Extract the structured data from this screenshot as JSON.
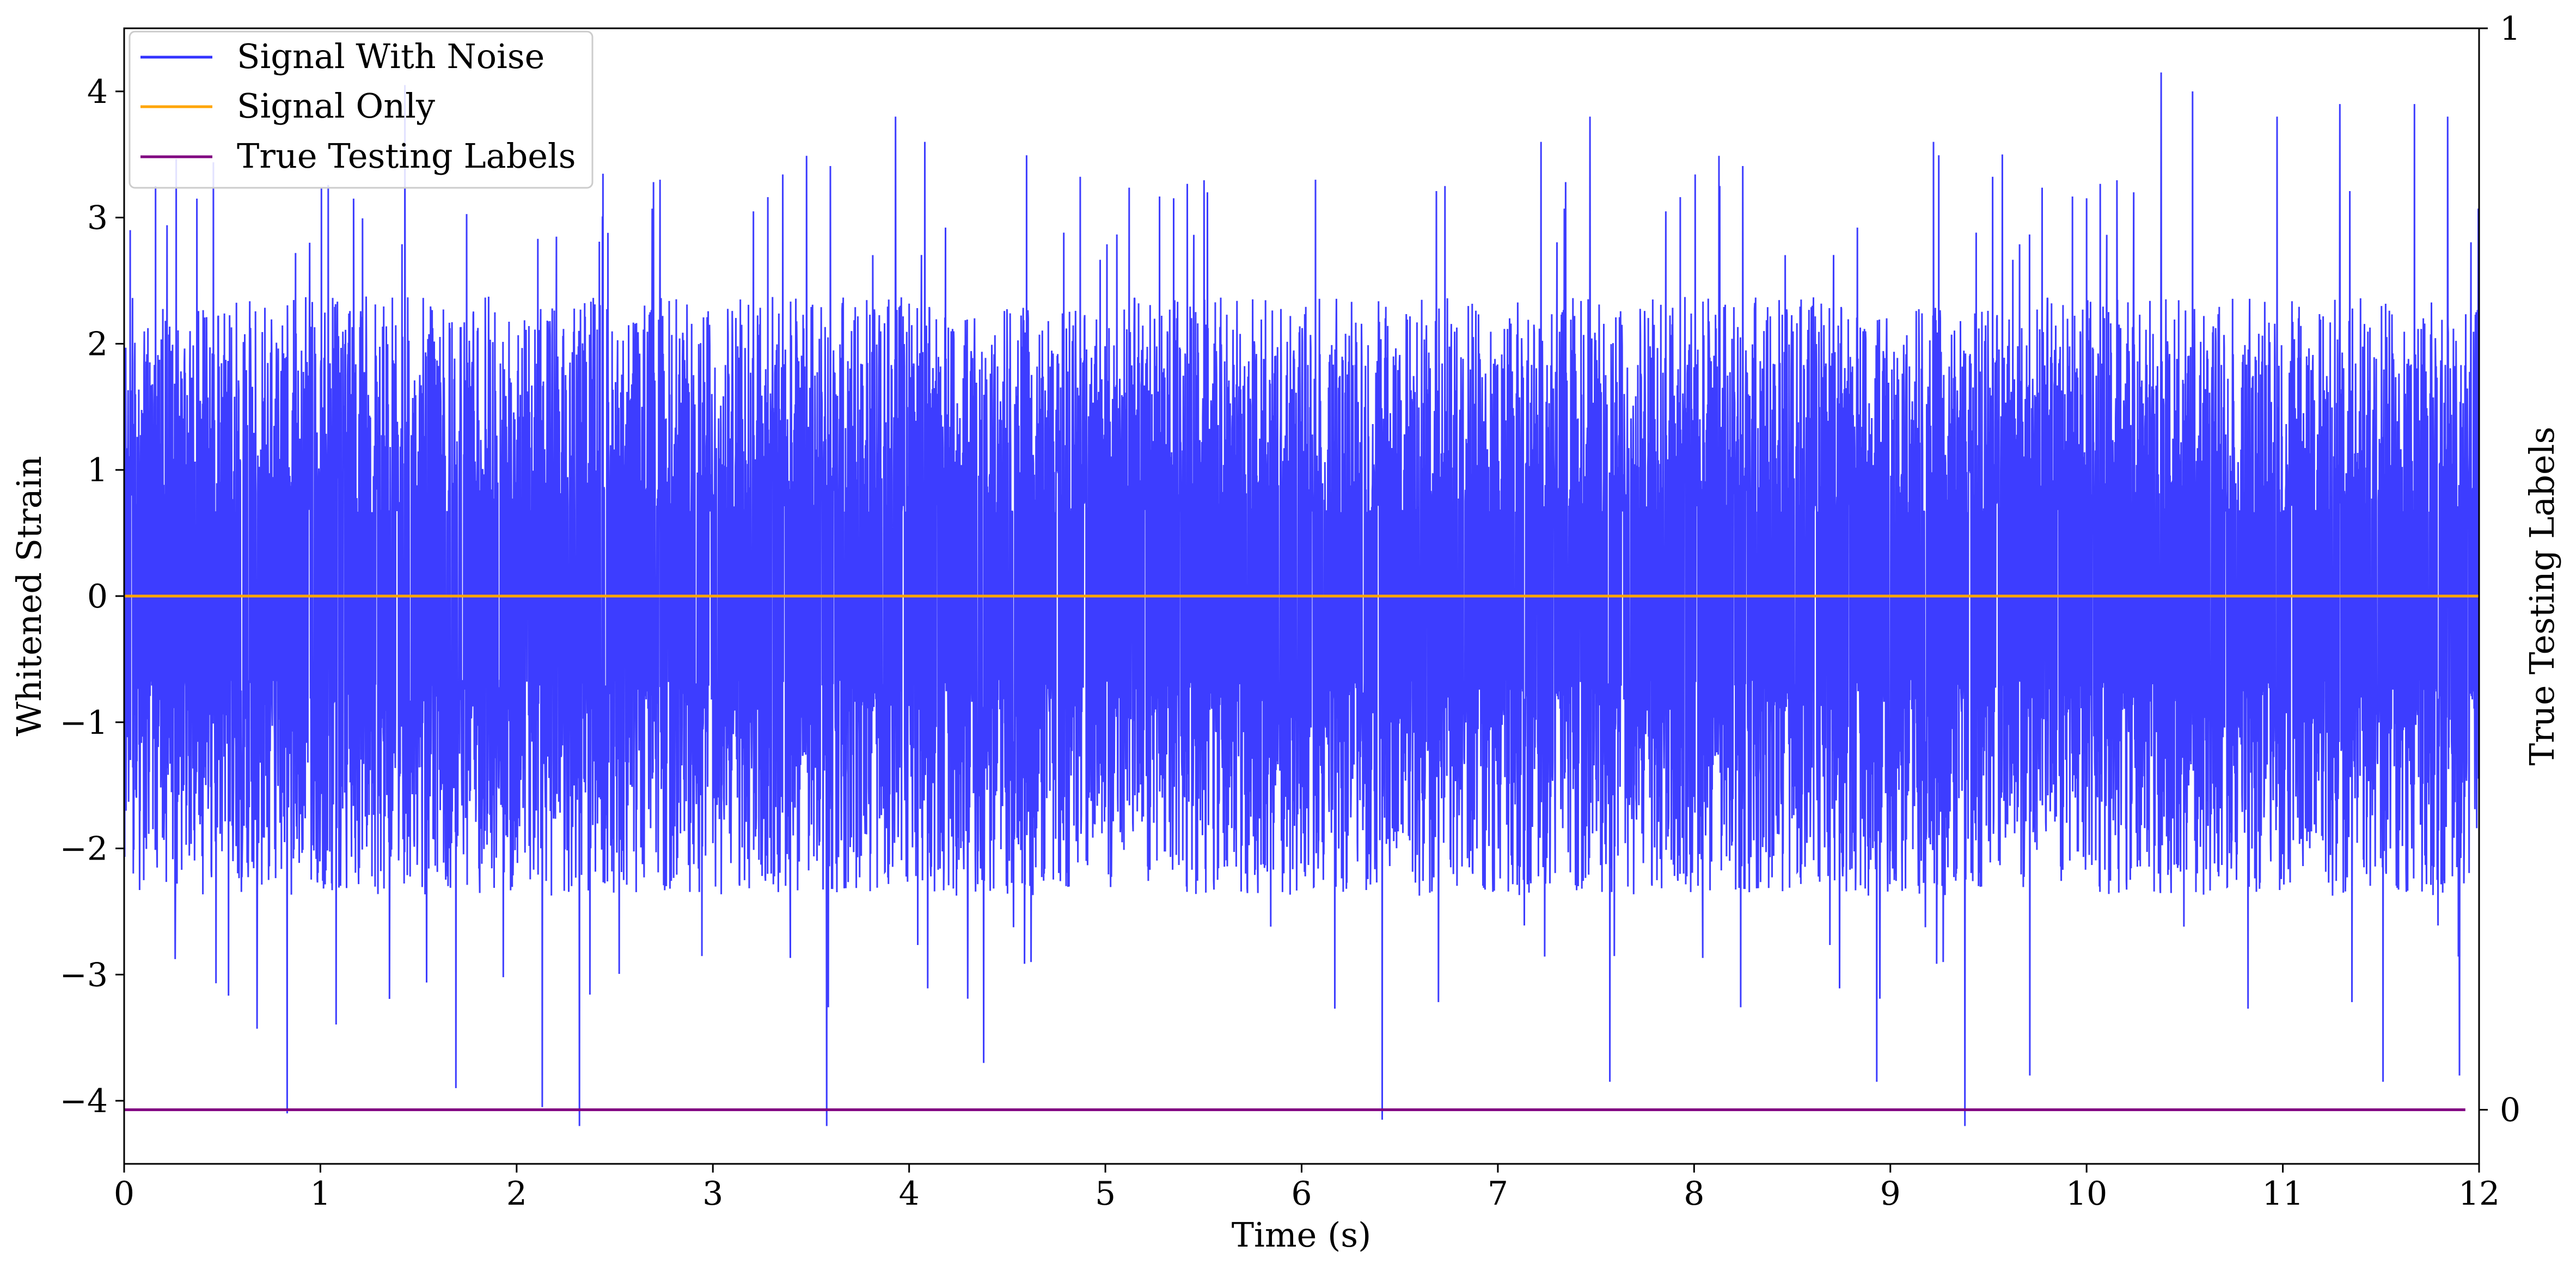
{
  "chart_data": {
    "type": "line",
    "xlabel": "Time (s)",
    "ylabel": "Whitened Strain",
    "y2label": "True Testing Labels",
    "xlim": [
      0,
      12
    ],
    "ylim": [
      -4.5,
      4.5
    ],
    "y2lim": [
      -0.05,
      1
    ],
    "xticks": [
      "0",
      "1",
      "2",
      "3",
      "4",
      "5",
      "6",
      "7",
      "8",
      "9",
      "10",
      "11",
      "12"
    ],
    "yticks": [
      "−4",
      "−3",
      "−2",
      "−1",
      "0",
      "1",
      "2",
      "3",
      "4"
    ],
    "y2ticks": [
      "0",
      "1"
    ],
    "grid": false,
    "legend_position": "top-left",
    "noise_envelope": {
      "typical_amplitude": 1.9,
      "max": 4.15,
      "min": -4.2
    },
    "series": [
      {
        "name": "Signal With Noise",
        "color": "#3333ff",
        "peaks": [
          {
            "x": 0.03,
            "y": 2.9
          },
          {
            "x": 0.16,
            "y": 3.25
          },
          {
            "x": 0.37,
            "y": 3.15
          },
          {
            "x": 0.83,
            "y": -4.1
          },
          {
            "x": 1.17,
            "y": 3.15
          },
          {
            "x": 1.43,
            "y": 4.05
          },
          {
            "x": 1.69,
            "y": -3.9
          },
          {
            "x": 2.13,
            "y": -4.05
          },
          {
            "x": 2.32,
            "y": -4.2
          },
          {
            "x": 2.73,
            "y": 3.3
          },
          {
            "x": 3.58,
            "y": -4.2
          },
          {
            "x": 3.93,
            "y": 3.8
          },
          {
            "x": 4.08,
            "y": 3.6
          },
          {
            "x": 4.38,
            "y": -3.7
          },
          {
            "x": 5.52,
            "y": 3.2
          },
          {
            "x": 6.07,
            "y": 3.3
          },
          {
            "x": 6.41,
            "y": -4.15
          },
          {
            "x": 6.73,
            "y": 3.25
          },
          {
            "x": 7.22,
            "y": 3.6
          },
          {
            "x": 7.47,
            "y": 3.8
          },
          {
            "x": 7.57,
            "y": -3.85
          },
          {
            "x": 8.13,
            "y": 3.25
          },
          {
            "x": 8.93,
            "y": -3.85
          },
          {
            "x": 9.22,
            "y": 3.6
          },
          {
            "x": 9.38,
            "y": -4.2
          },
          {
            "x": 9.57,
            "y": 3.5
          },
          {
            "x": 9.71,
            "y": -3.8
          },
          {
            "x": 10.24,
            "y": 3.2
          },
          {
            "x": 10.38,
            "y": 4.15
          },
          {
            "x": 10.54,
            "y": 4.0
          },
          {
            "x": 10.97,
            "y": 3.8
          },
          {
            "x": 11.29,
            "y": 3.9
          },
          {
            "x": 11.51,
            "y": -3.85
          },
          {
            "x": 11.67,
            "y": 3.9
          },
          {
            "x": 11.84,
            "y": 3.8
          },
          {
            "x": 11.9,
            "y": -3.8
          }
        ]
      },
      {
        "name": "Signal Only",
        "color": "#ffa500",
        "x": [
          0,
          12
        ],
        "y": [
          0,
          0
        ]
      },
      {
        "name": "True Testing Labels",
        "color": "#800080",
        "axis": "right",
        "x": [
          0,
          11.93
        ],
        "y": [
          0,
          0
        ]
      }
    ]
  }
}
